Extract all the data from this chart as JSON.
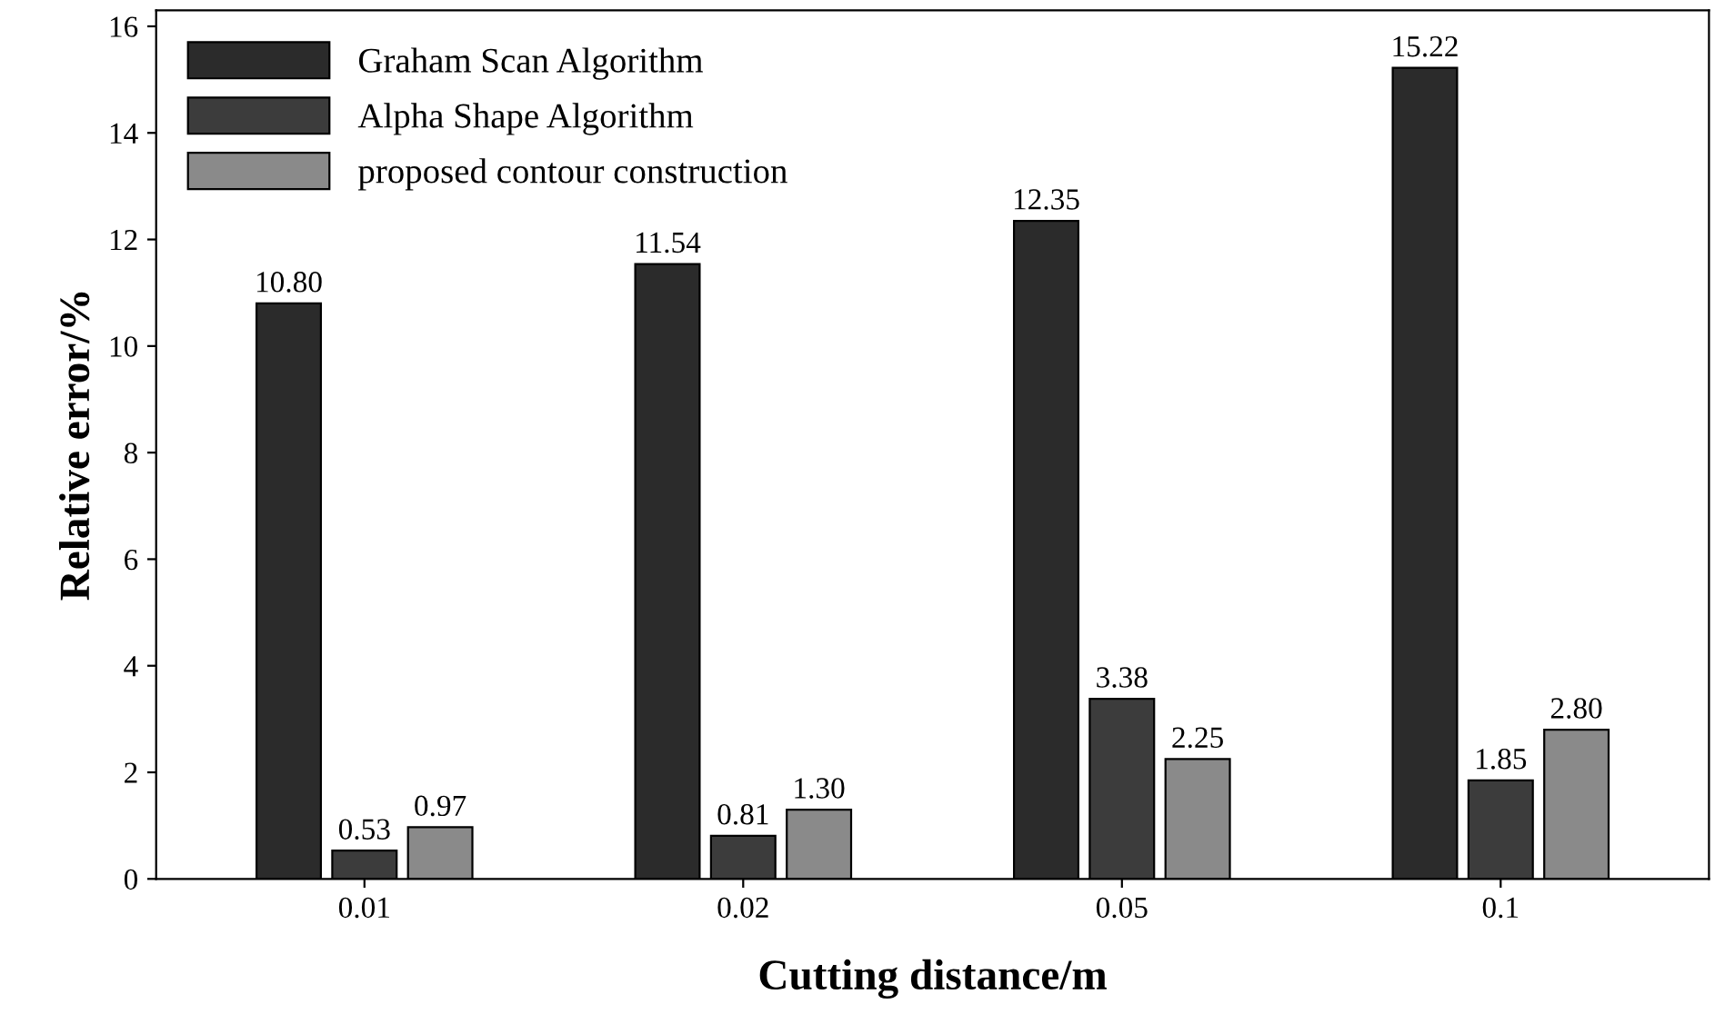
{
  "chart_data": {
    "type": "bar",
    "xlabel": "Cutting distance/m",
    "ylabel": "Relative error/%",
    "categories": [
      "0.01",
      "0.02",
      "0.05",
      "0.1"
    ],
    "series": [
      {
        "name": "Graham Scan Algorithm",
        "color": "#2b2b2b",
        "values": [
          10.8,
          11.54,
          12.35,
          15.22
        ],
        "value_labels": [
          "10.80",
          "11.54",
          "12.35",
          "15.22"
        ]
      },
      {
        "name": "Alpha Shape Algorithm",
        "color": "#3c3c3c",
        "values": [
          0.53,
          0.81,
          3.38,
          1.85
        ],
        "value_labels": [
          "0.53",
          "0.81",
          "3.38",
          "1.85"
        ]
      },
      {
        "name": "proposed contour construction",
        "color": "#8a8a8a",
        "values": [
          0.97,
          1.3,
          2.25,
          2.8
        ],
        "value_labels": [
          "0.97",
          "1.30",
          "2.25",
          "2.80"
        ]
      }
    ],
    "ylim": [
      0,
      16.3
    ],
    "yticks": [
      0,
      2,
      4,
      6,
      8,
      10,
      12,
      14,
      16
    ],
    "grid": false,
    "legend": "top left"
  }
}
